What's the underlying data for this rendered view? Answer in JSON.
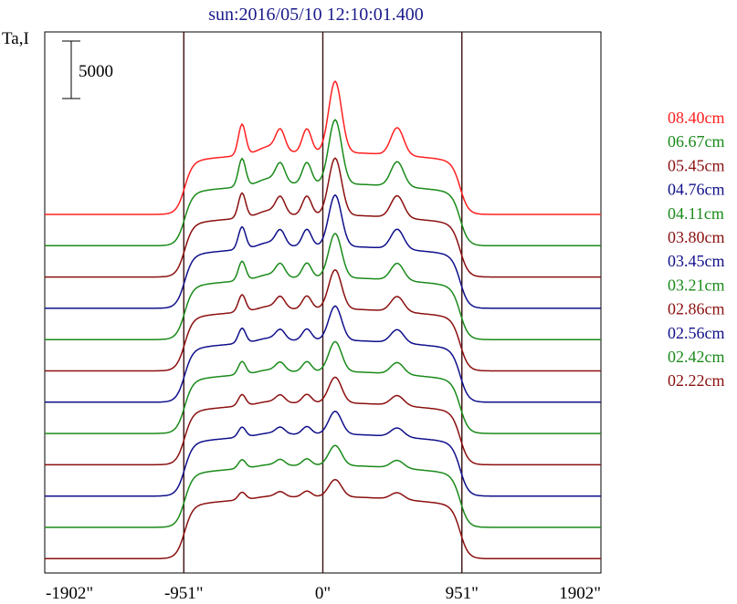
{
  "chart_data": {
    "type": "line",
    "title": "sun:2016/05/10 12:10:01.400",
    "ylabel": "Ta,I",
    "scale_bar_label": "5000",
    "scale_bar_value": 5000,
    "x_ticks": [
      {
        "label": "-1902\"",
        "value": -1902
      },
      {
        "label": "-951\"",
        "value": -951
      },
      {
        "label": "0\"",
        "value": 0
      },
      {
        "label": "951\"",
        "value": 951
      },
      {
        "label": "1902\"",
        "value": 1902
      }
    ],
    "xlim": [
      -1902,
      1902
    ],
    "vertical_markers": [
      -951,
      0,
      951
    ],
    "legend_position": "right",
    "series": [
      {
        "name": "08.40cm",
        "color": "#ff2020",
        "peak_scale": 1.0
      },
      {
        "name": "06.67cm",
        "color": "#1a8a1a",
        "peak_scale": 0.9
      },
      {
        "name": "05.45cm",
        "color": "#8b1010",
        "peak_scale": 0.8
      },
      {
        "name": "04.76cm",
        "color": "#10108b",
        "peak_scale": 0.72
      },
      {
        "name": "04.11cm",
        "color": "#1a8a1a",
        "peak_scale": 0.62
      },
      {
        "name": "03.80cm",
        "color": "#8b1010",
        "peak_scale": 0.55
      },
      {
        "name": "03.45cm",
        "color": "#10108b",
        "peak_scale": 0.48
      },
      {
        "name": "03.21cm",
        "color": "#1a8a1a",
        "peak_scale": 0.42
      },
      {
        "name": "02.86cm",
        "color": "#8b1010",
        "peak_scale": 0.36
      },
      {
        "name": "02.56cm",
        "color": "#10108b",
        "peak_scale": 0.32
      },
      {
        "name": "02.42cm",
        "color": "#1a8a1a",
        "peak_scale": 0.28
      },
      {
        "name": "02.22cm",
        "color": "#8b1010",
        "peak_scale": 0.24
      }
    ]
  }
}
